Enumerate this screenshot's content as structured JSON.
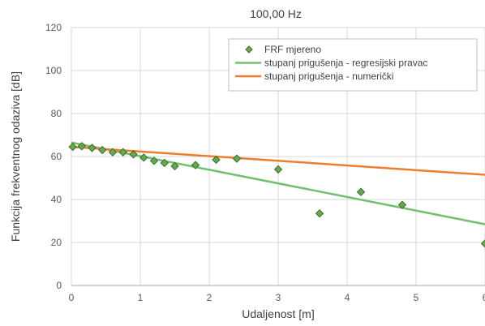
{
  "chart_data": {
    "type": "scatter",
    "title": "100,00 Hz",
    "xlabel": "Udaljenost [m]",
    "ylabel": "Funkcija frekventnog odaziva [dB]",
    "xlim": [
      0,
      6
    ],
    "ylim": [
      0,
      120
    ],
    "xticks": [
      0,
      1,
      2,
      3,
      4,
      5,
      6
    ],
    "yticks": [
      0,
      20,
      40,
      60,
      80,
      100,
      120
    ],
    "grid": true,
    "legend_position": "top-right",
    "series": [
      {
        "name": "FRF mjereno",
        "kind": "scatter",
        "color": "#6aa84f",
        "x": [
          0.02,
          0.15,
          0.3,
          0.45,
          0.6,
          0.75,
          0.9,
          1.05,
          1.2,
          1.35,
          1.5,
          1.8,
          2.1,
          2.4,
          3.0,
          3.6,
          4.2,
          4.8,
          6.0
        ],
        "y": [
          64.5,
          64.8,
          64.0,
          63.0,
          62.0,
          62.0,
          61.0,
          59.5,
          58.0,
          57.0,
          55.5,
          56.0,
          58.5,
          59.0,
          54.0,
          33.5,
          43.5,
          37.5,
          19.5
        ]
      },
      {
        "name": "stupanj prigušenja - regresijski pravac",
        "kind": "line",
        "color": "#70c070",
        "x": [
          0,
          6
        ],
        "y": [
          66.5,
          28.5
        ]
      },
      {
        "name": "stupanj prigušenja - numerički",
        "kind": "line",
        "color": "#ed7d31",
        "x": [
          0,
          6
        ],
        "y": [
          64.5,
          51.5
        ]
      }
    ]
  }
}
